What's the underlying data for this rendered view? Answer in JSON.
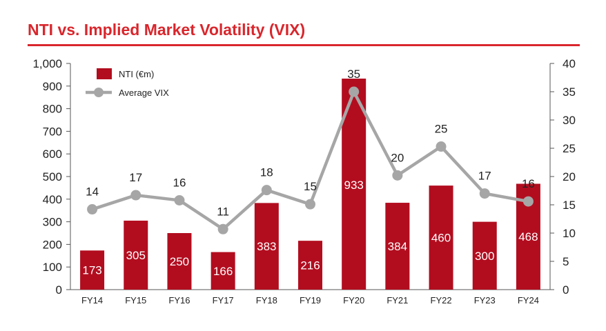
{
  "title": "NTI vs. Implied Market Volatility (VIX)",
  "colors": {
    "accent": "#d9262c",
    "bar": "#b20d1f",
    "line": "#a6a6a6"
  },
  "chart_data": {
    "type": "bar",
    "categories": [
      "FY14",
      "FY15",
      "FY16",
      "FY17",
      "FY18",
      "FY19",
      "FY20",
      "FY21",
      "FY22",
      "FY23",
      "FY24"
    ],
    "series": [
      {
        "name": "NTI (€m)",
        "type": "bar",
        "axis": "left",
        "values": [
          173,
          305,
          250,
          166,
          383,
          216,
          933,
          384,
          460,
          300,
          468
        ]
      },
      {
        "name": "Average VIX",
        "type": "line",
        "axis": "right",
        "values": [
          14.2,
          16.7,
          15.8,
          10.7,
          17.6,
          15.1,
          35.0,
          20.2,
          25.3,
          17.0,
          15.6
        ],
        "labels": [
          "14",
          "17",
          "16",
          "11",
          "18",
          "15",
          "35",
          "20",
          "25",
          "17",
          "16"
        ]
      }
    ],
    "ylim_left": [
      0,
      1000
    ],
    "ylim_right": [
      0,
      40
    ],
    "yticks_left": [
      "0",
      "100",
      "200",
      "300",
      "400",
      "500",
      "600",
      "700",
      "800",
      "900",
      "1,000"
    ],
    "yticks_right": [
      "0",
      "5",
      "10",
      "15",
      "20",
      "25",
      "30",
      "35",
      "40"
    ],
    "legend_position": "top-left",
    "grid": false
  }
}
